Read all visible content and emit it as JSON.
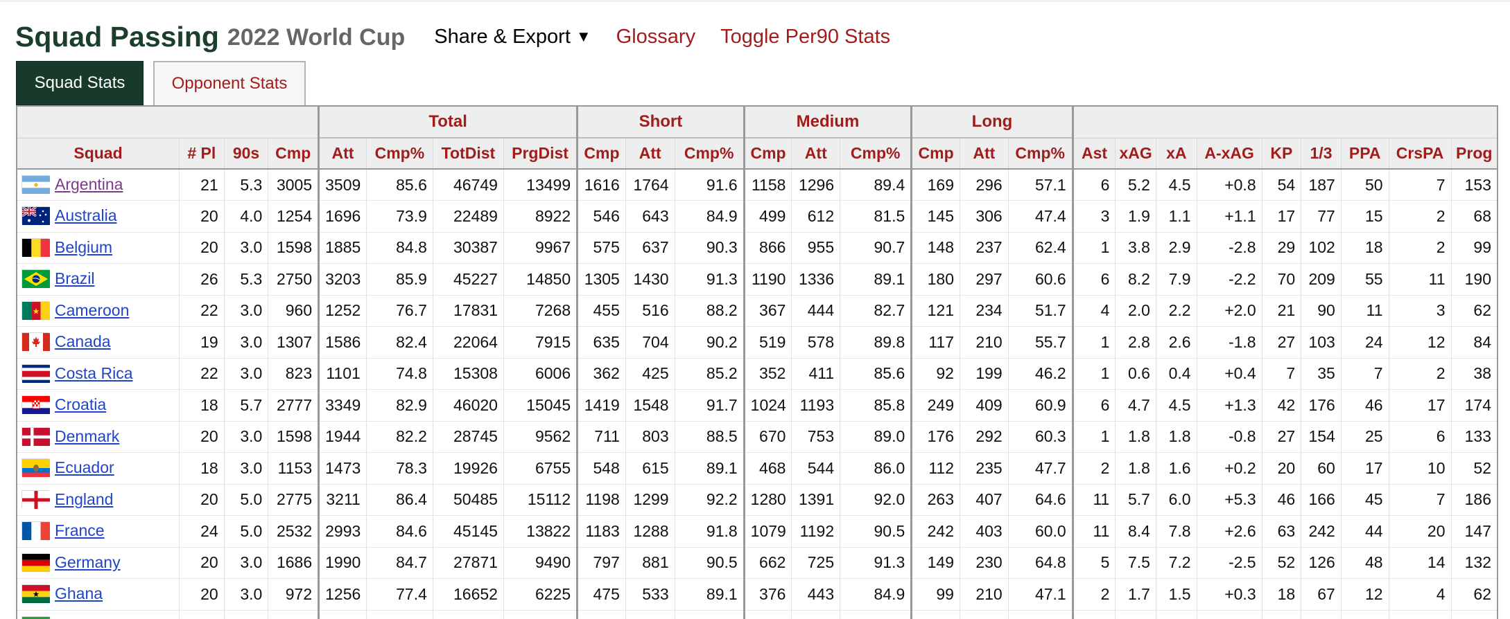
{
  "header": {
    "title": "Squad Passing",
    "subtitle": "2022 World Cup",
    "share_label": "Share & Export",
    "share_arrow": "▼",
    "glossary": "Glossary",
    "toggle": "Toggle Per90 Stats"
  },
  "tabs": {
    "squad": "Squad Stats",
    "opponent": "Opponent Stats"
  },
  "groups": {
    "total": "Total",
    "short": "Short",
    "medium": "Medium",
    "long": "Long"
  },
  "columns": [
    "Squad",
    "# Pl",
    "90s",
    "Cmp",
    "Att",
    "Cmp%",
    "TotDist",
    "PrgDist",
    "Cmp",
    "Att",
    "Cmp%",
    "Cmp",
    "Att",
    "Cmp%",
    "Cmp",
    "Att",
    "Cmp%",
    "Ast",
    "xAG",
    "xA",
    "A-xAG",
    "KP",
    "1/3",
    "PPA",
    "CrsPA",
    "Prog"
  ],
  "rows": [
    {
      "squad": "Argentina",
      "flag": "argentina-flag-icon",
      "stats": [
        "21",
        "5.3",
        "3005",
        "3509",
        "85.6",
        "46749",
        "13499",
        "1616",
        "1764",
        "91.6",
        "1158",
        "1296",
        "89.4",
        "169",
        "296",
        "57.1",
        "6",
        "5.2",
        "4.5",
        "+0.8",
        "54",
        "187",
        "50",
        "7",
        "153"
      ]
    },
    {
      "squad": "Australia",
      "flag": "australia-flag-icon",
      "stats": [
        "20",
        "4.0",
        "1254",
        "1696",
        "73.9",
        "22489",
        "8922",
        "546",
        "643",
        "84.9",
        "499",
        "612",
        "81.5",
        "145",
        "306",
        "47.4",
        "3",
        "1.9",
        "1.1",
        "+1.1",
        "17",
        "77",
        "15",
        "2",
        "68"
      ]
    },
    {
      "squad": "Belgium",
      "flag": "belgium-flag-icon",
      "stats": [
        "20",
        "3.0",
        "1598",
        "1885",
        "84.8",
        "30387",
        "9967",
        "575",
        "637",
        "90.3",
        "866",
        "955",
        "90.7",
        "148",
        "237",
        "62.4",
        "1",
        "3.8",
        "2.9",
        "-2.8",
        "29",
        "102",
        "18",
        "2",
        "99"
      ]
    },
    {
      "squad": "Brazil",
      "flag": "brazil-flag-icon",
      "stats": [
        "26",
        "5.3",
        "2750",
        "3203",
        "85.9",
        "45227",
        "14850",
        "1305",
        "1430",
        "91.3",
        "1190",
        "1336",
        "89.1",
        "180",
        "297",
        "60.6",
        "6",
        "8.2",
        "7.9",
        "-2.2",
        "70",
        "209",
        "55",
        "11",
        "190"
      ]
    },
    {
      "squad": "Cameroon",
      "flag": "cameroon-flag-icon",
      "stats": [
        "22",
        "3.0",
        "960",
        "1252",
        "76.7",
        "17831",
        "7268",
        "455",
        "516",
        "88.2",
        "367",
        "444",
        "82.7",
        "121",
        "234",
        "51.7",
        "4",
        "2.0",
        "2.2",
        "+2.0",
        "21",
        "90",
        "11",
        "3",
        "62"
      ]
    },
    {
      "squad": "Canada",
      "flag": "canada-flag-icon",
      "stats": [
        "19",
        "3.0",
        "1307",
        "1586",
        "82.4",
        "22064",
        "7915",
        "635",
        "704",
        "90.2",
        "519",
        "578",
        "89.8",
        "117",
        "210",
        "55.7",
        "1",
        "2.8",
        "2.6",
        "-1.8",
        "27",
        "103",
        "24",
        "12",
        "84"
      ]
    },
    {
      "squad": "Costa Rica",
      "flag": "costa-rica-flag-icon",
      "stats": [
        "22",
        "3.0",
        "823",
        "1101",
        "74.8",
        "15308",
        "6006",
        "362",
        "425",
        "85.2",
        "352",
        "411",
        "85.6",
        "92",
        "199",
        "46.2",
        "1",
        "0.6",
        "0.4",
        "+0.4",
        "7",
        "35",
        "7",
        "2",
        "38"
      ]
    },
    {
      "squad": "Croatia",
      "flag": "croatia-flag-icon",
      "stats": [
        "18",
        "5.7",
        "2777",
        "3349",
        "82.9",
        "46020",
        "15045",
        "1419",
        "1548",
        "91.7",
        "1024",
        "1193",
        "85.8",
        "249",
        "409",
        "60.9",
        "6",
        "4.7",
        "4.5",
        "+1.3",
        "42",
        "176",
        "46",
        "17",
        "174"
      ]
    },
    {
      "squad": "Denmark",
      "flag": "denmark-flag-icon",
      "stats": [
        "20",
        "3.0",
        "1598",
        "1944",
        "82.2",
        "28745",
        "9562",
        "711",
        "803",
        "88.5",
        "670",
        "753",
        "89.0",
        "176",
        "292",
        "60.3",
        "1",
        "1.8",
        "1.8",
        "-0.8",
        "27",
        "154",
        "25",
        "6",
        "133"
      ]
    },
    {
      "squad": "Ecuador",
      "flag": "ecuador-flag-icon",
      "stats": [
        "18",
        "3.0",
        "1153",
        "1473",
        "78.3",
        "19926",
        "6755",
        "548",
        "615",
        "89.1",
        "468",
        "544",
        "86.0",
        "112",
        "235",
        "47.7",
        "2",
        "1.8",
        "1.6",
        "+0.2",
        "20",
        "60",
        "17",
        "10",
        "52"
      ]
    },
    {
      "squad": "England",
      "flag": "england-flag-icon",
      "stats": [
        "20",
        "5.0",
        "2775",
        "3211",
        "86.4",
        "50485",
        "15112",
        "1198",
        "1299",
        "92.2",
        "1280",
        "1391",
        "92.0",
        "263",
        "407",
        "64.6",
        "11",
        "5.7",
        "6.0",
        "+5.3",
        "46",
        "166",
        "45",
        "7",
        "186"
      ]
    },
    {
      "squad": "France",
      "flag": "france-flag-icon",
      "stats": [
        "24",
        "5.0",
        "2532",
        "2993",
        "84.6",
        "45145",
        "13822",
        "1183",
        "1288",
        "91.8",
        "1079",
        "1192",
        "90.5",
        "242",
        "403",
        "60.0",
        "11",
        "8.4",
        "7.8",
        "+2.6",
        "63",
        "242",
        "44",
        "20",
        "147"
      ]
    },
    {
      "squad": "Germany",
      "flag": "germany-flag-icon",
      "stats": [
        "20",
        "3.0",
        "1686",
        "1990",
        "84.7",
        "27871",
        "9490",
        "797",
        "881",
        "90.5",
        "662",
        "725",
        "91.3",
        "149",
        "230",
        "64.8",
        "5",
        "7.5",
        "7.2",
        "-2.5",
        "52",
        "126",
        "48",
        "14",
        "132"
      ]
    },
    {
      "squad": "Ghana",
      "flag": "ghana-flag-icon",
      "stats": [
        "20",
        "3.0",
        "972",
        "1256",
        "77.4",
        "16652",
        "6225",
        "475",
        "533",
        "89.1",
        "376",
        "443",
        "84.9",
        "99",
        "210",
        "47.1",
        "2",
        "1.7",
        "1.5",
        "+0.3",
        "18",
        "67",
        "12",
        "4",
        "62"
      ]
    },
    {
      "squad": "",
      "flag": "iran-flag-icon",
      "stats": [
        "",
        "",
        "",
        "",
        "",
        "",
        "",
        "",
        "",
        "",
        "",
        "",
        "",
        "",
        "",
        "",
        "",
        "",
        "",
        "",
        "",
        "",
        "",
        "",
        ""
      ]
    }
  ]
}
